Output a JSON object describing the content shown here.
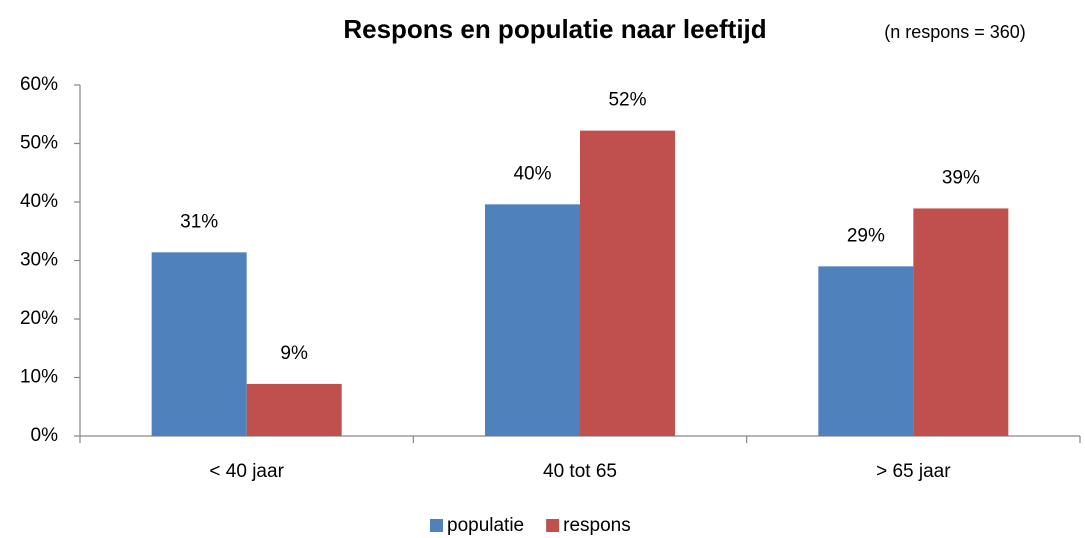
{
  "chart_data": {
    "type": "bar",
    "title": "Respons en populatie naar leeftijd",
    "subtitle": "(n respons = 360)",
    "categories": [
      "< 40 jaar",
      "40 tot 65",
      "> 65 jaar"
    ],
    "series": [
      {
        "name": "populatie",
        "color": "#4f81bd",
        "values": [
          31.4,
          39.6,
          29.0
        ],
        "value_labels": [
          "31%",
          "40%",
          "29%"
        ]
      },
      {
        "name": "respons",
        "color": "#c0504d",
        "values": [
          8.9,
          52.2,
          38.9
        ],
        "value_labels": [
          "9%",
          "52%",
          "39%"
        ]
      }
    ],
    "ylim": [
      0,
      60
    ],
    "yticks": [
      {
        "value": 0,
        "label": "0%"
      },
      {
        "value": 10,
        "label": "10%"
      },
      {
        "value": 20,
        "label": "20%"
      },
      {
        "value": 30,
        "label": "30%"
      },
      {
        "value": 40,
        "label": "40%"
      },
      {
        "value": 50,
        "label": "50%"
      },
      {
        "value": 60,
        "label": "60%"
      }
    ],
    "grid": false,
    "legend": "bottom"
  }
}
